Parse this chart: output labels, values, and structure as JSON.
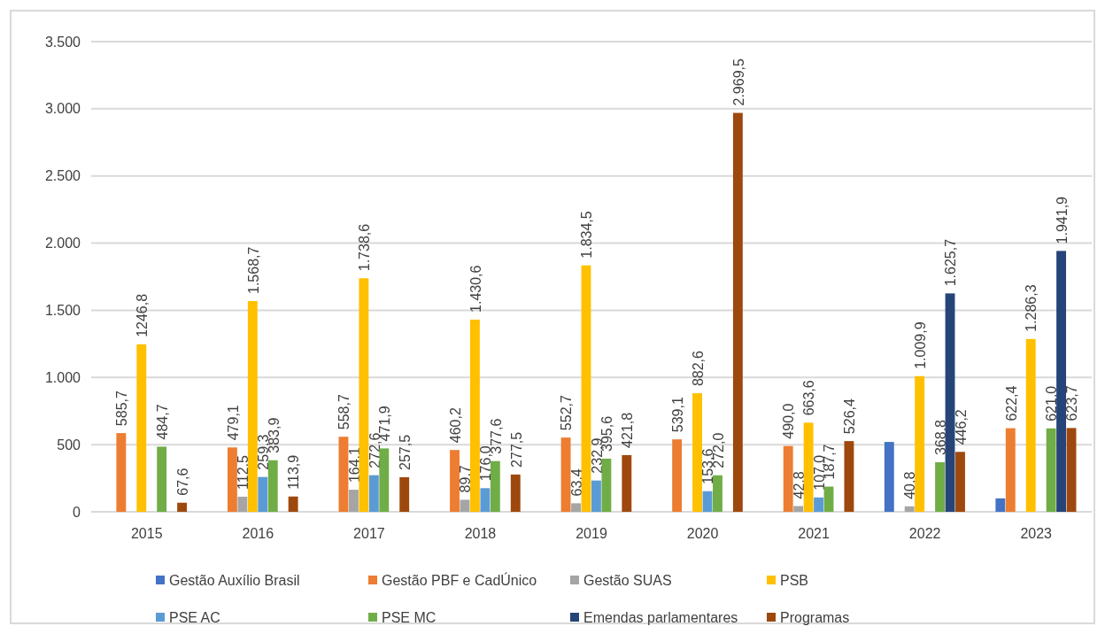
{
  "chart_data": {
    "type": "bar",
    "categories": [
      "2015",
      "2016",
      "2017",
      "2018",
      "2019",
      "2020",
      "2021",
      "2022",
      "2023"
    ],
    "series": [
      {
        "name": "Gestão Auxílio Brasil",
        "color": "#4472c4",
        "values": [
          null,
          null,
          null,
          null,
          null,
          null,
          null,
          520,
          100
        ],
        "value_labels": [
          null,
          null,
          null,
          null,
          null,
          null,
          null,
          null,
          null
        ]
      },
      {
        "name": "Gestão PBF e CadÚnico",
        "color": "#ed7d31",
        "values": [
          585.7,
          479.1,
          558.7,
          460.2,
          552.7,
          539.1,
          490.0,
          null,
          622.4
        ],
        "value_labels": [
          "585,7",
          "479,1",
          "558,7",
          "460,2",
          "552,7",
          "539,1",
          "490,0",
          null,
          "622,4"
        ]
      },
      {
        "name": "Gestão SUAS",
        "color": "#a5a5a5",
        "values": [
          null,
          112.5,
          164.1,
          89.7,
          63.4,
          null,
          42.8,
          40.8,
          null
        ],
        "value_labels": [
          null,
          "112,5",
          "164,1",
          "89,7",
          "63,4",
          null,
          "42,8",
          "40,8",
          null
        ]
      },
      {
        "name": "PSB",
        "color": "#ffc000",
        "values": [
          1246.8,
          1568.7,
          1738.6,
          1430.6,
          1834.5,
          882.6,
          663.6,
          1009.9,
          1286.3
        ],
        "value_labels": [
          "1246,8",
          "1.568,7",
          "1.738,6",
          "1.430,6",
          "1.834,5",
          "882,6",
          "663,6",
          "1.009,9",
          "1.286,3"
        ]
      },
      {
        "name": "PSE AC",
        "color": "#5b9bd5",
        "values": [
          null,
          259.3,
          272.6,
          176.0,
          232.9,
          153.6,
          107.0,
          null,
          null
        ],
        "value_labels": [
          null,
          "259,3",
          "272,6",
          "176,0",
          "232,9",
          "153,6",
          "107,0",
          null,
          null
        ]
      },
      {
        "name": "PSE MC",
        "color": "#70ad47",
        "values": [
          484.7,
          383.9,
          471.9,
          377.6,
          395.6,
          272.0,
          187.7,
          368.8,
          621.0
        ],
        "value_labels": [
          "484,7",
          "383,9",
          "471,9",
          "377,6",
          "395,6",
          "272,0",
          "187,7",
          "368,8",
          "621,0"
        ]
      },
      {
        "name": "Emendas parlamentares",
        "color": "#264478",
        "values": [
          null,
          null,
          null,
          null,
          null,
          null,
          null,
          1625.7,
          1941.9
        ],
        "value_labels": [
          null,
          null,
          null,
          null,
          null,
          null,
          null,
          "1.625,7",
          "1.941,9"
        ]
      },
      {
        "name": "Programas",
        "color": "#9e480e",
        "values": [
          67.6,
          113.9,
          257.5,
          277.5,
          421.8,
          2969.5,
          526.4,
          446.2,
          623.7
        ],
        "value_labels": [
          "67,6",
          "113,9",
          "257,5",
          "277,5",
          "421,8",
          "2.969,5",
          "526,4",
          "446,2",
          "623,7"
        ]
      }
    ],
    "ylim": [
      0,
      3500
    ],
    "yticks": [
      0,
      {
        "value": 500,
        "label": "500"
      },
      {
        "value": 1000,
        "label": "1.000"
      },
      {
        "value": 1500,
        "label": "1.500"
      },
      {
        "value": 2000,
        "label": "2.000"
      },
      {
        "value": 2500,
        "label": "2.500"
      },
      {
        "value": 3000,
        "label": "3.000"
      },
      {
        "value": 3500,
        "label": "3.500"
      }
    ],
    "grid": "y",
    "legend": "bottom"
  }
}
